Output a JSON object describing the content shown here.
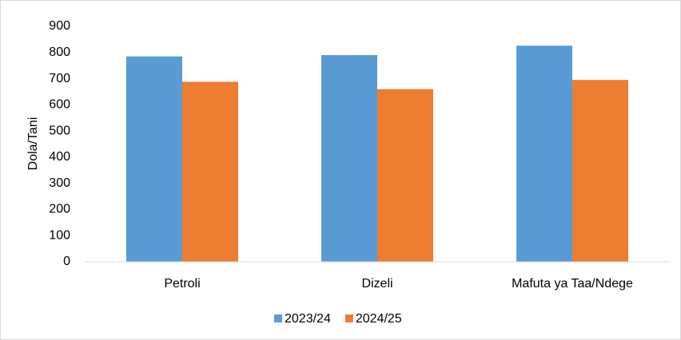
{
  "chart_data": {
    "type": "bar",
    "categories": [
      "Petroli",
      "Dizeli",
      "Mafuta ya Taa/Ndege"
    ],
    "series": [
      {
        "name": "2023/24",
        "color": "#5b9bd5",
        "values": [
          785,
          790,
          826
        ]
      },
      {
        "name": "2024/25",
        "color": "#ed7d31",
        "values": [
          688,
          660,
          695
        ]
      }
    ],
    "y_label": "Dola/Tani",
    "ylim": [
      0,
      900
    ],
    "yticks": [
      0,
      100,
      200,
      300,
      400,
      500,
      600,
      700,
      800,
      900
    ],
    "grid": false,
    "legend": "bottom"
  }
}
